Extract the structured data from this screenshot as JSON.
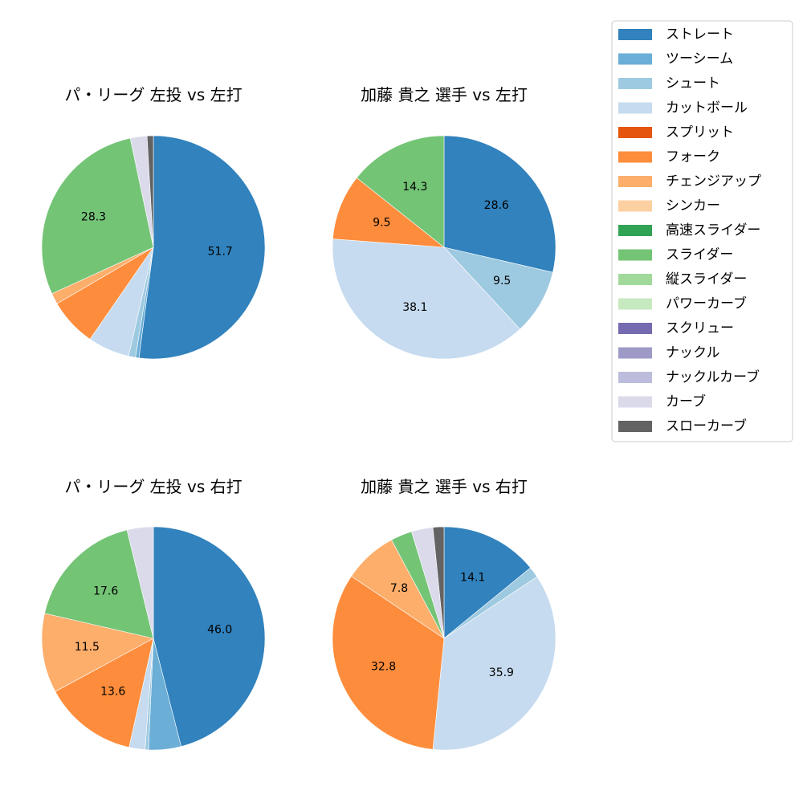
{
  "legend": {
    "items": [
      {
        "label": "ストレート",
        "color": "#3182bd"
      },
      {
        "label": "ツーシーム",
        "color": "#6baed6"
      },
      {
        "label": "シュート",
        "color": "#9ecae1"
      },
      {
        "label": "カットボール",
        "color": "#c6dbef"
      },
      {
        "label": "スプリット",
        "color": "#e6550d"
      },
      {
        "label": "フォーク",
        "color": "#fd8d3c"
      },
      {
        "label": "チェンジアップ",
        "color": "#fdae6b"
      },
      {
        "label": "シンカー",
        "color": "#fdd0a2"
      },
      {
        "label": "高速スライダー",
        "color": "#31a354"
      },
      {
        "label": "スライダー",
        "color": "#74c476"
      },
      {
        "label": "縦スライダー",
        "color": "#a1d99b"
      },
      {
        "label": "パワーカーブ",
        "color": "#c7e9c0"
      },
      {
        "label": "スクリュー",
        "color": "#756bb1"
      },
      {
        "label": "ナックル",
        "color": "#9e9ac8"
      },
      {
        "label": "ナックルカーブ",
        "color": "#bcbddc"
      },
      {
        "label": "カーブ",
        "color": "#dadaeb"
      },
      {
        "label": "スローカーブ",
        "color": "#636363"
      }
    ]
  },
  "chart_data": [
    {
      "type": "pie",
      "title": "パ・リーグ 左投 vs 左打",
      "slices": [
        {
          "name": "ストレート",
          "value": 51.7,
          "label": "51.7"
        },
        {
          "name": "ツーシーム",
          "value": 0.5,
          "label": ""
        },
        {
          "name": "シュート",
          "value": 1.0,
          "label": ""
        },
        {
          "name": "カットボール",
          "value": 6.0,
          "label": ""
        },
        {
          "name": "フォーク",
          "value": 6.9,
          "label": ""
        },
        {
          "name": "チェンジアップ",
          "value": 1.6,
          "label": ""
        },
        {
          "name": "スライダー",
          "value": 28.3,
          "label": "28.3"
        },
        {
          "name": "カーブ",
          "value": 2.4,
          "label": ""
        },
        {
          "name": "スローカーブ",
          "value": 0.9,
          "label": ""
        }
      ]
    },
    {
      "type": "pie",
      "title": "加藤 貴之 選手 vs 左打",
      "slices": [
        {
          "name": "ストレート",
          "value": 28.6,
          "label": "28.6"
        },
        {
          "name": "シュート",
          "value": 9.5,
          "label": "9.5"
        },
        {
          "name": "カットボール",
          "value": 38.1,
          "label": "38.1"
        },
        {
          "name": "フォーク",
          "value": 9.5,
          "label": "9.5"
        },
        {
          "name": "スライダー",
          "value": 14.3,
          "label": "14.3"
        }
      ]
    },
    {
      "type": "pie",
      "title": "パ・リーグ 左投 vs 右打",
      "slices": [
        {
          "name": "ストレート",
          "value": 46.0,
          "label": "46.0"
        },
        {
          "name": "ツーシーム",
          "value": 4.7,
          "label": ""
        },
        {
          "name": "シュート",
          "value": 0.5,
          "label": ""
        },
        {
          "name": "カットボール",
          "value": 2.3,
          "label": ""
        },
        {
          "name": "フォーク",
          "value": 13.6,
          "label": "13.6"
        },
        {
          "name": "チェンジアップ",
          "value": 11.5,
          "label": "11.5"
        },
        {
          "name": "スライダー",
          "value": 17.6,
          "label": "17.6"
        },
        {
          "name": "カーブ",
          "value": 3.8,
          "label": ""
        }
      ]
    },
    {
      "type": "pie",
      "title": "加藤 貴之 選手 vs 右打",
      "slices": [
        {
          "name": "ストレート",
          "value": 14.1,
          "label": "14.1"
        },
        {
          "name": "シュート",
          "value": 1.6,
          "label": ""
        },
        {
          "name": "カットボール",
          "value": 35.9,
          "label": "35.9"
        },
        {
          "name": "フォーク",
          "value": 32.8,
          "label": "32.8"
        },
        {
          "name": "チェンジアップ",
          "value": 7.8,
          "label": "7.8"
        },
        {
          "name": "スライダー",
          "value": 3.1,
          "label": ""
        },
        {
          "name": "カーブ",
          "value": 3.1,
          "label": ""
        },
        {
          "name": "スローカーブ",
          "value": 1.6,
          "label": ""
        }
      ]
    }
  ]
}
